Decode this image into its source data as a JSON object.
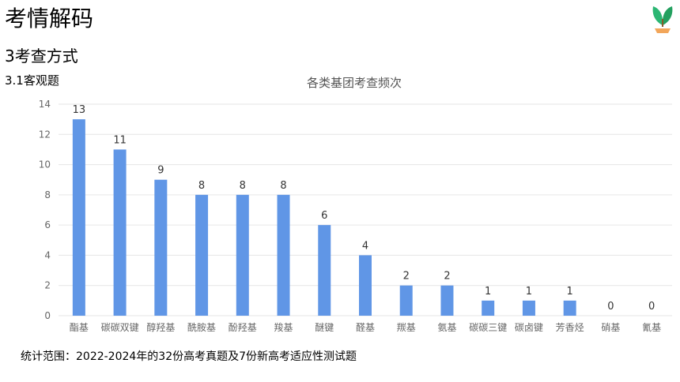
{
  "header": {
    "title": "考情解码",
    "section": "3考查方式",
    "subsection": "3.1客观题",
    "logo_icon": "sprout-icon"
  },
  "footnote": "统计范围：2022-2024年的32份高考真题及7份新高考适应性测试题",
  "colors": {
    "bar": "#6096E6",
    "grid": "#E6E6E6",
    "axis_text": "#666666",
    "label_text": "#333333"
  },
  "chart_data": {
    "type": "bar",
    "title": "各类基团考查频次",
    "categories": [
      "酯基",
      "碳碳双键",
      "醇羟基",
      "酰胺基",
      "酚羟基",
      "羧基",
      "醚键",
      "醛基",
      "羰基",
      "氨基",
      "碳碳三键",
      "碳卤键",
      "芳香烃",
      "硝基",
      "氰基"
    ],
    "values": [
      13,
      11,
      9,
      8,
      8,
      8,
      6,
      4,
      2,
      2,
      1,
      1,
      1,
      0,
      0
    ],
    "data_labels": [
      "13",
      "11",
      "9",
      "8",
      "8",
      "8",
      "6",
      "4",
      "2",
      "2",
      "1",
      "1",
      "1",
      "0",
      "0"
    ],
    "ylim": [
      0,
      14
    ],
    "y_ticks": [
      "0",
      "2",
      "4",
      "6",
      "8",
      "10",
      "12",
      "14"
    ],
    "grid": true
  }
}
